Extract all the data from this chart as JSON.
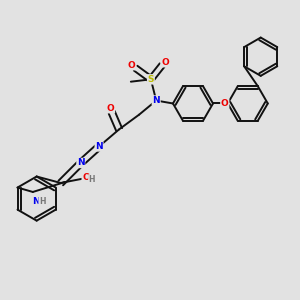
{
  "bg_color": "#e2e2e2",
  "bond_color": "#111111",
  "bond_width": 1.4,
  "atom_colors": {
    "N": "#0000ee",
    "O": "#ee0000",
    "S": "#bbbb00",
    "H": "#777777",
    "C": "#111111"
  },
  "figsize": [
    3.0,
    3.0
  ],
  "dpi": 100
}
